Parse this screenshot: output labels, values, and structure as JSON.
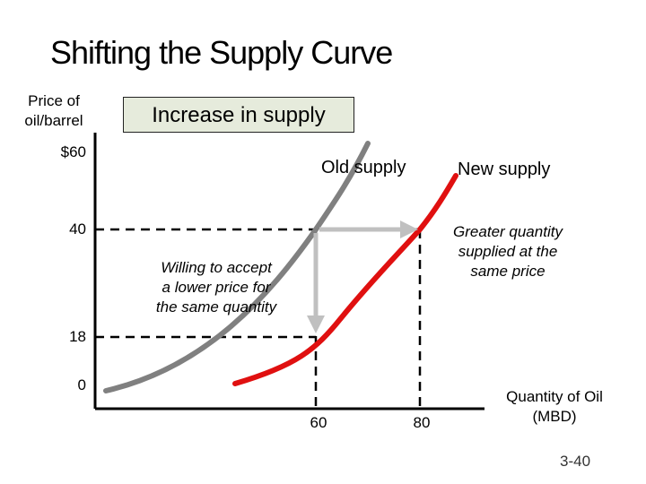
{
  "title": "Shifting the Supply Curve",
  "y_axis_label": [
    "Price of",
    "oil/barrel"
  ],
  "x_axis_label": [
    "Quantity of Oil",
    "(MBD)"
  ],
  "callout_box": "Increase in supply",
  "y_ticks": [
    "$60",
    "40",
    "18",
    "0"
  ],
  "x_ticks": [
    "60",
    "80"
  ],
  "old_supply_label": "Old supply",
  "new_supply_label": "New supply",
  "note_left": [
    "Willing to accept",
    "a lower price for",
    "the same quantity"
  ],
  "note_right": [
    "Greater quantity",
    "supplied at the",
    "same price"
  ],
  "slide_number": "3-40",
  "colors": {
    "old_supply": "#808080",
    "new_supply": "#e01010",
    "arrows": "#c0c0c0",
    "box": "#e6ebdc"
  }
}
